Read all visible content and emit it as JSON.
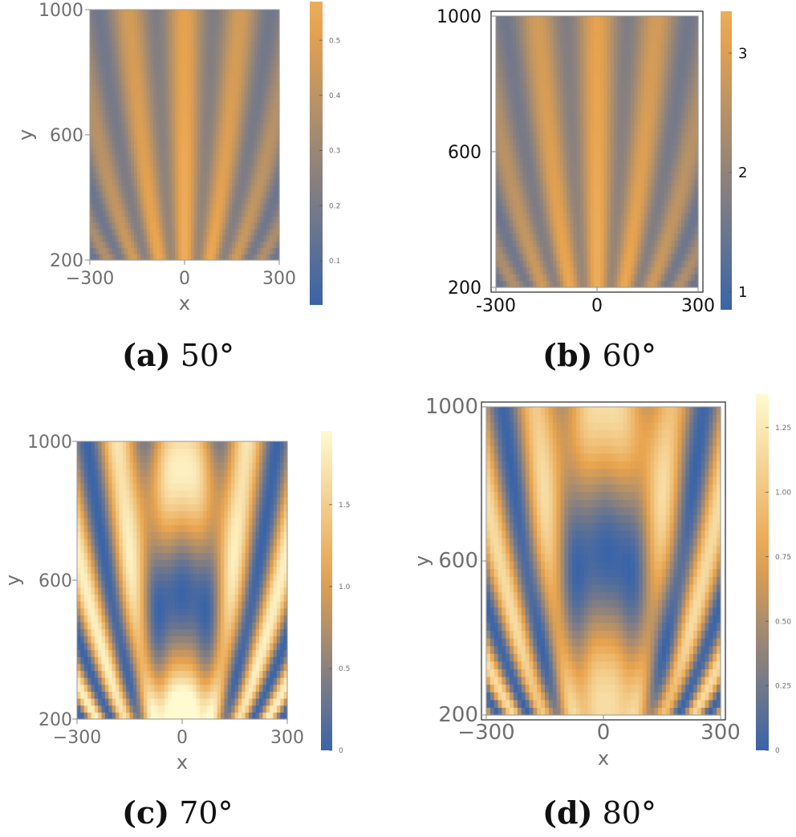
{
  "colors": {
    "low": "#3a64a8",
    "mid": "#e8a34d",
    "high": "#fffad0"
  },
  "chart_data": [
    {
      "type": "heatmap",
      "caption_tag": "(a)",
      "caption_text": "50°",
      "xlabel": "x",
      "ylabel": "y",
      "xlim": [
        -300,
        300
      ],
      "ylim": [
        200,
        1000
      ],
      "xticks": [
        "−300",
        "0",
        "300"
      ],
      "xtick_values": [
        -300,
        0,
        300
      ],
      "yticks": [
        "200",
        "600",
        "1000"
      ],
      "ytick_values": [
        200,
        600,
        1000
      ],
      "colorbar_ticks": [
        "0.1",
        "0.2",
        "0.3",
        "0.4",
        "0.5"
      ],
      "colorbar_values": [
        0.1,
        0.2,
        0.3,
        0.4,
        0.5
      ],
      "colorbar_range": [
        0.02,
        0.57
      ],
      "pattern": {
        "mode": "fan",
        "k": 0.085,
        "alpha": 0.8,
        "theta_scale": 2.2,
        "peak_vmax": 0.57
      },
      "title": ""
    },
    {
      "type": "heatmap",
      "caption_tag": "(b)",
      "caption_text": "60°",
      "xlabel": "",
      "ylabel": "",
      "xlim": [
        -300,
        300
      ],
      "ylim": [
        200,
        1000
      ],
      "xticks": [
        "-300",
        "0",
        "300"
      ],
      "xtick_values": [
        -300,
        0,
        300
      ],
      "yticks": [
        "200",
        "600",
        "1000"
      ],
      "ytick_values": [
        200,
        600,
        1000
      ],
      "colorbar_ticks": [
        "1",
        "2",
        "3"
      ],
      "colorbar_values": [
        1,
        2,
        3
      ],
      "colorbar_range": [
        0.85,
        3.35
      ],
      "pattern": {
        "mode": "fan",
        "k": 0.085,
        "alpha": 0.7,
        "theta_scale": 2.0,
        "peak_vmax": 3.35
      },
      "title": ""
    },
    {
      "type": "heatmap",
      "caption_tag": "(c)",
      "caption_text": "70°",
      "xlabel": "x",
      "ylabel": "y",
      "xlim": [
        -300,
        300
      ],
      "ylim": [
        200,
        1000
      ],
      "xticks": [
        "−300",
        "0",
        "300"
      ],
      "xtick_values": [
        -300,
        0,
        300
      ],
      "yticks": [
        "200",
        "600",
        "1000"
      ],
      "ytick_values": [
        200,
        600,
        1000
      ],
      "colorbar_ticks": [
        "0",
        "0.5",
        "1.0",
        "1.5"
      ],
      "colorbar_values": [
        0,
        0.5,
        1.0,
        1.5
      ],
      "colorbar_range": [
        0,
        1.95
      ],
      "pattern": {
        "mode": "arch",
        "k": 0.075,
        "alpha": 0.55,
        "theta_scale": 2.0,
        "peak_vmax": 1.95
      },
      "title": ""
    },
    {
      "type": "heatmap",
      "caption_tag": "(d)",
      "caption_text": "80°",
      "xlabel": "x",
      "ylabel": "y",
      "xlim": [
        -300,
        300
      ],
      "ylim": [
        200,
        1000
      ],
      "xticks": [
        "−300",
        "0",
        "300"
      ],
      "xtick_values": [
        -300,
        0,
        300
      ],
      "yticks": [
        "200",
        "600",
        "1000"
      ],
      "ytick_values": [
        200,
        600,
        1000
      ],
      "colorbar_ticks": [
        "0",
        "0.25",
        "0.50",
        "0.75",
        "1.00",
        "1.25"
      ],
      "colorbar_values": [
        0,
        0.25,
        0.5,
        0.75,
        1.0,
        1.25
      ],
      "colorbar_range": [
        0,
        1.38
      ],
      "pattern": {
        "mode": "arch2",
        "k": 0.075,
        "alpha": 0.5,
        "theta_scale": 2.0,
        "peak_vmax": 1.38
      },
      "title": ""
    }
  ]
}
